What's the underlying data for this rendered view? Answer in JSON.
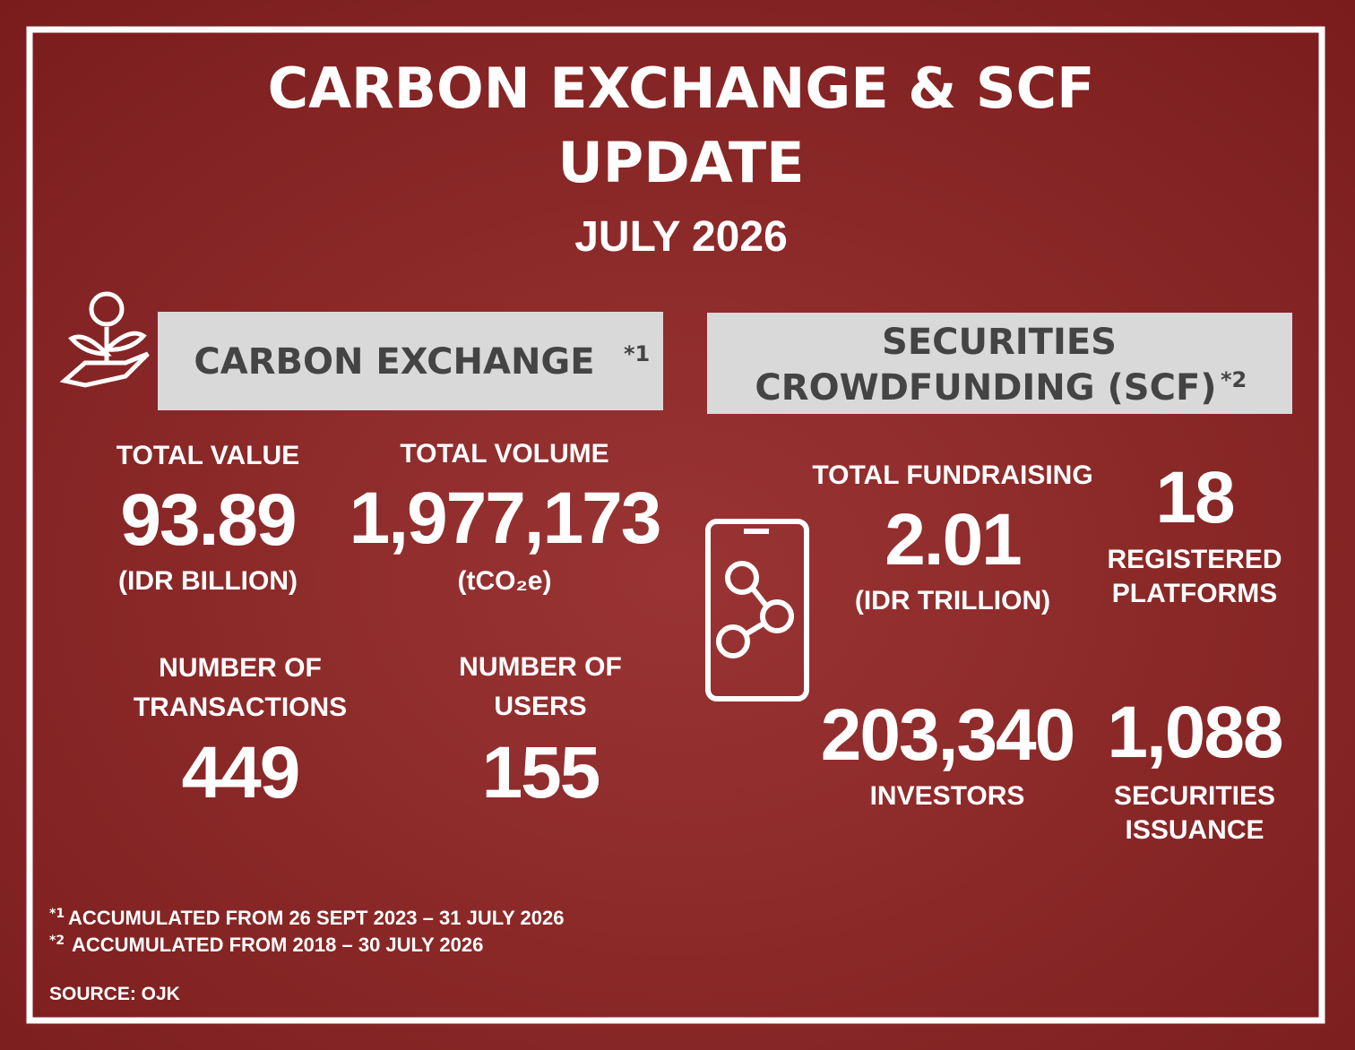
{
  "header": {
    "title_lines": [
      "CARBON EXCHANGE & SCF",
      "UPDATE"
    ],
    "date": "JULY 2026"
  },
  "carbon_exchange": {
    "title": "CARBON EXCHANGE",
    "note_marker": "*1",
    "stats": [
      {
        "label_lines": [
          "TOTAL VALUE"
        ],
        "value": "93.89",
        "unit": "(IDR BILLION)"
      },
      {
        "label_lines": [
          "TOTAL VOLUME"
        ],
        "value": "1,977,173",
        "unit": "(tCO₂e)"
      },
      {
        "label_lines": [
          "NUMBER OF",
          "TRANSACTIONS"
        ],
        "value": "449"
      },
      {
        "label_lines": [
          "NUMBER OF",
          "USERS"
        ],
        "value": "155"
      }
    ]
  },
  "scf": {
    "title_lines": [
      "SECURITIES",
      "CROWDFUNDING (SCF)"
    ],
    "note_marker": "*2",
    "stats": [
      {
        "label_lines": [
          "TOTAL FUNDRAISING"
        ],
        "value": "2.01",
        "unit": "(IDR TRILLION)"
      },
      {
        "value": "18",
        "label_lines": [
          "REGISTERED",
          "PLATFORMS"
        ]
      },
      {
        "value": "203,340",
        "label_lines": [
          "INVESTORS"
        ]
      },
      {
        "value": "1,088",
        "label_lines": [
          "SECURITIES",
          "ISSUANCE"
        ]
      }
    ]
  },
  "footnotes": [
    {
      "marker": "*1",
      "text": "ACCUMULATED FROM 26 SEPT 2023 – 31 JULY 2026"
    },
    {
      "marker": "*2",
      "text": "ACCUMULATED FROM 2018 – 30 JULY 2026"
    }
  ],
  "source": "SOURCE: OJK"
}
